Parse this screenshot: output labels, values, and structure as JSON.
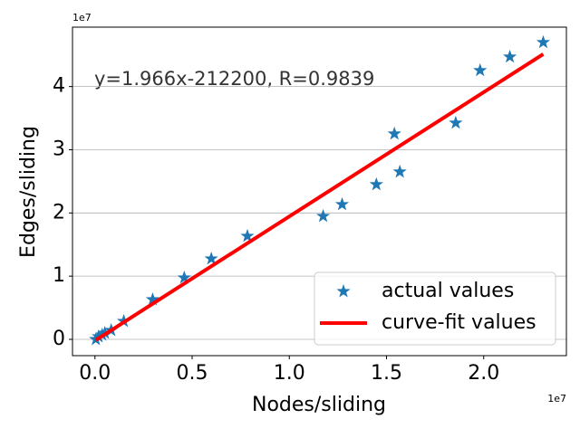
{
  "chart_data": {
    "type": "scatter",
    "annotation": "y=1.966x-212200, R=0.9839",
    "x_label": "Nodes/sliding",
    "y_label": "Edges/sliding",
    "x_offset": "1e7",
    "y_offset": "1e7",
    "xlim": [
      -1155000,
      24255000
    ],
    "ylim": [
      -2580000,
      49400000
    ],
    "xticks": [
      {
        "value": 0,
        "label": "0.0"
      },
      {
        "value": 5000000,
        "label": "0.5"
      },
      {
        "value": 10000000,
        "label": "1.0"
      },
      {
        "value": 15000000,
        "label": "1.5"
      },
      {
        "value": 20000000,
        "label": "2.0"
      }
    ],
    "yticks": [
      {
        "value": 0,
        "label": "0"
      },
      {
        "value": 10000000,
        "label": "1"
      },
      {
        "value": 20000000,
        "label": "2"
      },
      {
        "value": 30000000,
        "label": "3"
      },
      {
        "value": 40000000,
        "label": "4"
      }
    ],
    "grid": "y",
    "legend": "lower right",
    "series": [
      {
        "name": "actual values",
        "color": "#1f77b4",
        "kind": "star",
        "x": [
          46000,
          186000,
          371000,
          510000,
          835000,
          1485000,
          2970000,
          4594000,
          5986000,
          7842000,
          11740000,
          12715000,
          14478000,
          15406000,
          15684000,
          18561000,
          19814000,
          21346000,
          23063000
        ],
        "values": [
          0,
          430000,
          716000,
          1003000,
          1433000,
          2865000,
          6304000,
          9742000,
          12751000,
          16332000,
          19484000,
          21347000,
          24499000,
          32521000,
          26504000,
          34241000,
          42550000,
          44699000,
          46991000
        ]
      },
      {
        "name": "curve-fit values",
        "color": "#ff0000",
        "kind": "line",
        "x": [
          46000,
          23063000
        ],
        "values": [
          -122000,
          45130000
        ]
      }
    ]
  }
}
